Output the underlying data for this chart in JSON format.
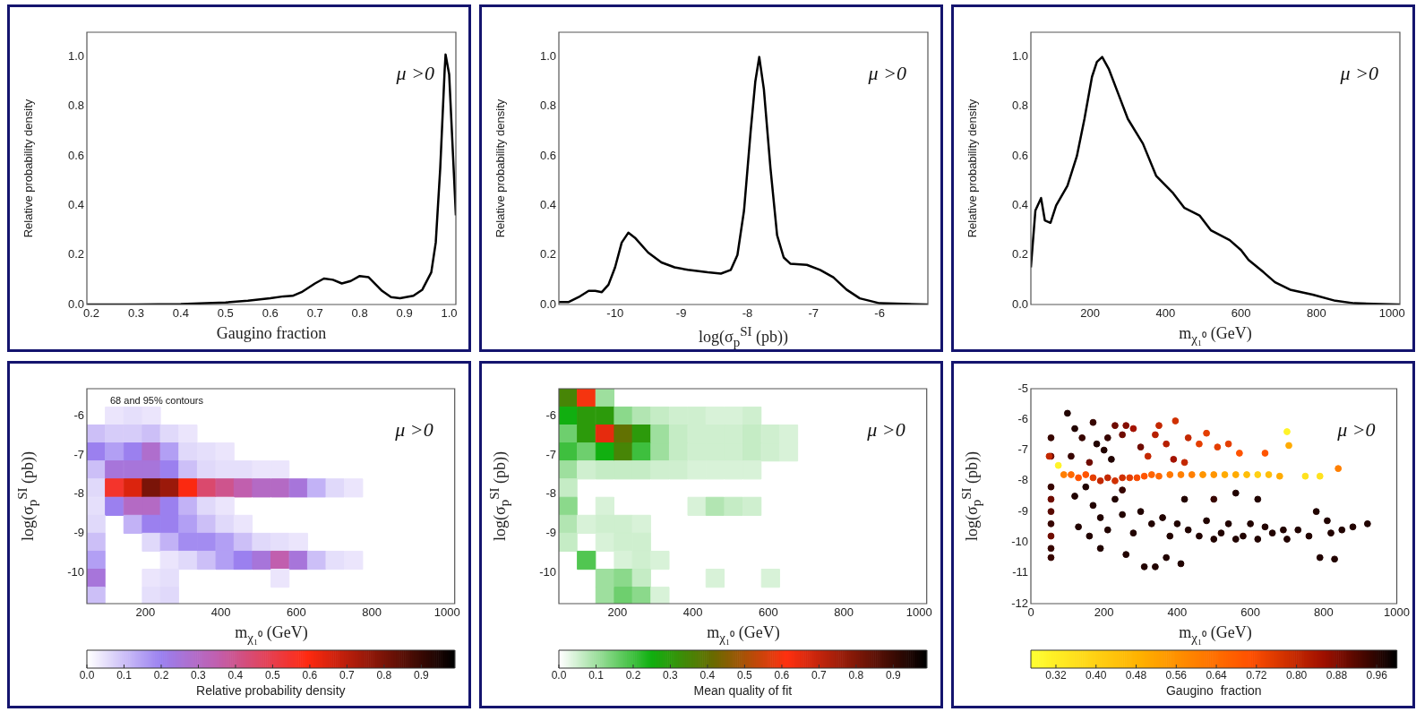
{
  "chart_data": [
    {
      "type": "line",
      "xlabel": "Gaugino  fraction",
      "ylabel": "Relative probability density",
      "annotations": [
        "μ >0"
      ],
      "xlim": [
        0.19,
        1.015
      ],
      "ylim": [
        0,
        1.1
      ],
      "xticks": [
        {
          "value": 0.2,
          "label": "0.2"
        },
        {
          "value": 0.3,
          "label": "0.3"
        },
        {
          "value": 0.4,
          "label": "0.4"
        },
        {
          "value": 0.5,
          "label": "0.5"
        },
        {
          "value": 0.6,
          "label": "0.6"
        },
        {
          "value": 0.7,
          "label": "0.7"
        },
        {
          "value": 0.8,
          "label": "0.8"
        },
        {
          "value": 0.9,
          "label": "0.9"
        },
        {
          "value": 1,
          "label": "1.0"
        }
      ],
      "yticks": [
        {
          "value": 0,
          "label": "0.0"
        },
        {
          "value": 0.2,
          "label": "0.2"
        },
        {
          "value": 0.4,
          "label": "0.4"
        },
        {
          "value": 0.6,
          "label": "0.6"
        },
        {
          "value": 0.8,
          "label": "0.8"
        },
        {
          "value": 1,
          "label": "1.0"
        }
      ],
      "series": [
        {
          "color": "#000000",
          "x": [
            0.19,
            0.3,
            0.4,
            0.5,
            0.55,
            0.6,
            0.63,
            0.65,
            0.67,
            0.7,
            0.72,
            0.74,
            0.76,
            0.78,
            0.8,
            0.82,
            0.85,
            0.87,
            0.89,
            0.92,
            0.94,
            0.96,
            0.97,
            0.98,
            0.99,
            0.992,
            1.0,
            1.015
          ],
          "values": [
            0,
            0,
            0.002,
            0.008,
            0.015,
            0.025,
            0.033,
            0.035,
            0.05,
            0.085,
            0.105,
            0.1,
            0.085,
            0.095,
            0.115,
            0.11,
            0.055,
            0.03,
            0.025,
            0.035,
            0.06,
            0.13,
            0.25,
            0.55,
            0.95,
            1.01,
            0.93,
            0.36
          ]
        }
      ]
    },
    {
      "type": "line",
      "xlabel": "log(σ$_{p}$$^{SI}$ (pb))",
      "ylabel": "Relative probability density",
      "annotations": [
        "μ >0"
      ],
      "xlim": [
        -10.85,
        -5.27
      ],
      "ylim": [
        0,
        1.1
      ],
      "xticks": [
        -10,
        -9,
        -8,
        -7,
        -6
      ],
      "yticks": [
        {
          "value": 0,
          "label": "0.0"
        },
        {
          "value": 0.2,
          "label": "0.2"
        },
        {
          "value": 0.4,
          "label": "0.4"
        },
        {
          "value": 0.6,
          "label": "0.6"
        },
        {
          "value": 0.8,
          "label": "0.8"
        },
        {
          "value": 1,
          "label": "1.0"
        }
      ],
      "series": [
        {
          "color": "#000000",
          "x": [
            -10.85,
            -10.7,
            -10.55,
            -10.4,
            -10.3,
            -10.2,
            -10.1,
            -10.0,
            -9.9,
            -9.8,
            -9.7,
            -9.5,
            -9.3,
            -9.1,
            -8.9,
            -8.6,
            -8.4,
            -8.25,
            -8.15,
            -8.05,
            -7.95,
            -7.88,
            -7.82,
            -7.75,
            -7.65,
            -7.55,
            -7.45,
            -7.35,
            -7.1,
            -6.9,
            -6.7,
            -6.5,
            -6.3,
            -6.0,
            -5.27
          ],
          "values": [
            0.01,
            0.01,
            0.03,
            0.055,
            0.055,
            0.05,
            0.08,
            0.15,
            0.25,
            0.29,
            0.27,
            0.21,
            0.17,
            0.15,
            0.14,
            0.13,
            0.125,
            0.14,
            0.2,
            0.38,
            0.7,
            0.9,
            1.0,
            0.87,
            0.55,
            0.28,
            0.19,
            0.165,
            0.16,
            0.14,
            0.11,
            0.06,
            0.025,
            0.005,
            0
          ]
        }
      ]
    },
    {
      "type": "line",
      "xlabel": "m$_{χ₁⁰}$ (GeV)",
      "ylabel": "Relative probability density",
      "annotations": [
        "μ >0"
      ],
      "xlim": [
        43,
        1021
      ],
      "ylim": [
        0,
        1.1
      ],
      "xticks": [
        200,
        400,
        600,
        800,
        1000
      ],
      "yticks": [
        {
          "value": 0,
          "label": "0.0"
        },
        {
          "value": 0.2,
          "label": "0.2"
        },
        {
          "value": 0.4,
          "label": "0.4"
        },
        {
          "value": 0.6,
          "label": "0.6"
        },
        {
          "value": 0.8,
          "label": "0.8"
        },
        {
          "value": 1,
          "label": "1.0"
        }
      ],
      "series": [
        {
          "color": "#000000",
          "x": [
            43,
            55,
            70,
            80,
            95,
            110,
            140,
            165,
            185,
            205,
            218,
            232,
            250,
            275,
            300,
            340,
            375,
            420,
            450,
            490,
            520,
            570,
            600,
            620,
            660,
            690,
            730,
            790,
            850,
            900,
            1021
          ],
          "values": [
            0.15,
            0.38,
            0.43,
            0.34,
            0.33,
            0.4,
            0.48,
            0.6,
            0.75,
            0.92,
            0.98,
            1.0,
            0.95,
            0.85,
            0.75,
            0.65,
            0.52,
            0.45,
            0.39,
            0.36,
            0.3,
            0.26,
            0.22,
            0.18,
            0.13,
            0.09,
            0.06,
            0.04,
            0.015,
            0.005,
            0
          ]
        }
      ]
    },
    {
      "type": "scatter",
      "xlabel": "m$_{χ₁⁰}$ (GeV)",
      "ylabel": "log(σ$_{p}$$^{SI}$ (pb))",
      "clabel": "Relative probability density",
      "annotations": [
        "μ >0",
        "68 and 95% contours"
      ],
      "marker": "square",
      "xlim": [
        45,
        1020
      ],
      "ylim": [
        -10.8,
        -5.3
      ],
      "xticks": [
        200,
        400,
        600,
        800,
        1000
      ],
      "yticks": [
        -10,
        -9,
        -8,
        -7,
        -6
      ],
      "clim": [
        0,
        0.99
      ],
      "cticks": [
        {
          "value": 0,
          "label": "0.0"
        },
        {
          "value": 0.1,
          "label": "0.1"
        },
        {
          "value": 0.2,
          "label": "0.2"
        },
        {
          "value": 0.3,
          "label": "0.3"
        },
        {
          "value": 0.4,
          "label": "0.4"
        },
        {
          "value": 0.5,
          "label": "0.5"
        },
        {
          "value": 0.6,
          "label": "0.6"
        },
        {
          "value": 0.7,
          "label": "0.7"
        },
        {
          "value": 0.8,
          "label": "0.8"
        },
        {
          "value": 0.9,
          "label": "0.9"
        }
      ],
      "x": [
        118,
        167,
        216,
        69,
        118,
        167,
        216,
        264,
        313,
        69,
        118,
        167,
        216,
        264,
        313,
        362,
        411,
        69,
        118,
        167,
        216,
        264,
        313,
        362,
        411,
        459,
        508,
        557,
        69,
        118,
        167,
        216,
        264,
        313,
        362,
        411,
        459,
        508,
        557,
        606,
        654,
        703,
        752,
        69,
        118,
        167,
        216,
        264,
        313,
        362,
        411,
        69,
        167,
        216,
        264,
        313,
        362,
        411,
        459,
        69,
        216,
        264,
        313,
        362,
        411,
        459,
        508,
        557,
        606,
        69,
        264,
        313,
        362,
        411,
        459,
        508,
        557,
        606,
        654,
        703,
        752,
        69,
        216,
        264,
        557,
        69,
        216,
        264
      ],
      "values": [
        -6.0,
        -6.0,
        -6.0,
        -6.46,
        -6.46,
        -6.46,
        -6.46,
        -6.46,
        -6.46,
        -6.92,
        -6.92,
        -6.92,
        -6.92,
        -6.92,
        -6.92,
        -6.92,
        -6.92,
        -7.38,
        -7.38,
        -7.38,
        -7.38,
        -7.38,
        -7.38,
        -7.38,
        -7.38,
        -7.38,
        -7.38,
        -7.38,
        -7.84,
        -7.84,
        -7.84,
        -7.84,
        -7.84,
        -7.84,
        -7.84,
        -7.84,
        -7.84,
        -7.84,
        -7.84,
        -7.84,
        -7.84,
        -7.84,
        -7.84,
        -8.31,
        -8.31,
        -8.31,
        -8.31,
        -8.31,
        -8.31,
        -8.31,
        -8.31,
        -8.77,
        -8.77,
        -8.77,
        -8.77,
        -8.77,
        -8.77,
        -8.77,
        -8.77,
        -9.23,
        -9.23,
        -9.23,
        -9.23,
        -9.23,
        -9.23,
        -9.23,
        -9.23,
        -9.23,
        -9.23,
        -9.69,
        -9.69,
        -9.69,
        -9.69,
        -9.69,
        -9.69,
        -9.69,
        -9.69,
        -9.69,
        -9.69,
        -9.69,
        -9.69,
        -10.15,
        -10.15,
        -10.15,
        -10.15,
        -10.61,
        -10.61,
        -10.61
      ],
      "cvalues": [
        0.04,
        0.05,
        0.04,
        0.1,
        0.08,
        0.08,
        0.1,
        0.06,
        0.04,
        0.2,
        0.15,
        0.2,
        0.28,
        0.15,
        0.06,
        0.05,
        0.04,
        0.1,
        0.25,
        0.25,
        0.25,
        0.2,
        0.1,
        0.06,
        0.05,
        0.05,
        0.04,
        0.04,
        0.06,
        0.55,
        0.65,
        0.8,
        0.75,
        0.6,
        0.45,
        0.4,
        0.35,
        0.3,
        0.3,
        0.25,
        0.12,
        0.06,
        0.04,
        0.05,
        0.2,
        0.3,
        0.3,
        0.2,
        0.12,
        0.06,
        0.04,
        0.06,
        0.12,
        0.2,
        0.2,
        0.15,
        0.1,
        0.06,
        0.04,
        0.1,
        0.06,
        0.12,
        0.18,
        0.18,
        0.15,
        0.1,
        0.06,
        0.05,
        0.04,
        0.15,
        0.04,
        0.06,
        0.1,
        0.15,
        0.2,
        0.25,
        0.35,
        0.25,
        0.1,
        0.05,
        0.04,
        0.25,
        0.04,
        0.05,
        0.04,
        0.1,
        0.05,
        0.06
      ]
    },
    {
      "type": "scatter",
      "xlabel": "m$_{χ₁⁰}$ (GeV)",
      "ylabel": "log(σ$_{p}$$^{SI}$ (pb))",
      "clabel": "Mean quality of fit",
      "annotations": [
        "μ >0"
      ],
      "marker": "square",
      "xlim": [
        45,
        1020
      ],
      "ylim": [
        -10.8,
        -5.3
      ],
      "xticks": [
        200,
        400,
        600,
        800,
        1000
      ],
      "yticks": [
        -10,
        -9,
        -8,
        -7,
        -6
      ],
      "clim": [
        0,
        0.99
      ],
      "cticks": [
        {
          "value": 0,
          "label": "0.0"
        },
        {
          "value": 0.1,
          "label": "0.1"
        },
        {
          "value": 0.2,
          "label": "0.2"
        },
        {
          "value": 0.3,
          "label": "0.3"
        },
        {
          "value": 0.4,
          "label": "0.4"
        },
        {
          "value": 0.5,
          "label": "0.5"
        },
        {
          "value": 0.6,
          "label": "0.6"
        },
        {
          "value": 0.7,
          "label": "0.7"
        },
        {
          "value": 0.8,
          "label": "0.8"
        },
        {
          "value": 0.9,
          "label": "0.9"
        }
      ],
      "x": [
        69,
        118,
        167,
        69,
        118,
        167,
        216,
        264,
        313,
        362,
        411,
        459,
        508,
        557,
        69,
        118,
        167,
        216,
        264,
        313,
        362,
        411,
        459,
        508,
        557,
        606,
        654,
        69,
        118,
        167,
        216,
        264,
        313,
        362,
        411,
        459,
        508,
        557,
        606,
        654,
        69,
        118,
        167,
        216,
        264,
        313,
        362,
        411,
        459,
        508,
        557,
        69,
        69,
        167,
        411,
        459,
        508,
        557,
        69,
        118,
        167,
        216,
        264,
        69,
        167,
        216,
        264,
        118,
        216,
        264,
        313,
        167,
        216,
        264,
        459,
        606,
        167,
        216,
        264,
        313
      ],
      "values": [
        -5.53,
        -5.53,
        -5.53,
        -6.0,
        -6.0,
        -6.0,
        -6.0,
        -6.0,
        -6.0,
        -6.0,
        -6.0,
        -6.0,
        -6.0,
        -6.0,
        -6.46,
        -6.46,
        -6.46,
        -6.46,
        -6.46,
        -6.46,
        -6.46,
        -6.46,
        -6.46,
        -6.46,
        -6.46,
        -6.46,
        -6.46,
        -6.92,
        -6.92,
        -6.92,
        -6.92,
        -6.92,
        -6.92,
        -6.92,
        -6.92,
        -6.92,
        -6.92,
        -6.92,
        -6.92,
        -6.92,
        -7.38,
        -7.38,
        -7.38,
        -7.38,
        -7.38,
        -7.38,
        -7.38,
        -7.38,
        -7.38,
        -7.38,
        -7.38,
        -7.84,
        -8.31,
        -8.31,
        -8.31,
        -8.31,
        -8.31,
        -8.31,
        -8.77,
        -8.77,
        -8.77,
        -8.77,
        -8.77,
        -9.23,
        -9.23,
        -9.23,
        -9.23,
        -9.69,
        -9.69,
        -9.69,
        -9.69,
        -10.15,
        -10.15,
        -10.15,
        -10.15,
        -10.15,
        -10.61,
        -10.61,
        -10.61,
        -10.61
      ],
      "cvalues": [
        0.35,
        0.6,
        0.1,
        0.25,
        0.3,
        0.3,
        0.12,
        0.08,
        0.06,
        0.05,
        0.05,
        0.04,
        0.04,
        0.05,
        0.15,
        0.3,
        0.65,
        0.4,
        0.3,
        0.1,
        0.06,
        0.05,
        0.05,
        0.05,
        0.06,
        0.05,
        0.04,
        0.2,
        0.15,
        0.25,
        0.35,
        0.2,
        0.1,
        0.06,
        0.05,
        0.05,
        0.05,
        0.06,
        0.05,
        0.04,
        0.1,
        0.05,
        0.06,
        0.06,
        0.06,
        0.05,
        0.05,
        0.04,
        0.04,
        0.04,
        0.04,
        0.06,
        0.12,
        0.04,
        0.04,
        0.08,
        0.06,
        0.05,
        0.08,
        0.04,
        0.05,
        0.05,
        0.04,
        0.06,
        0.04,
        0.05,
        0.05,
        0.18,
        0.04,
        0.05,
        0.04,
        0.1,
        0.12,
        0.06,
        0.04,
        0.04,
        0.1,
        0.15,
        0.12,
        0.04
      ]
    },
    {
      "type": "scatter",
      "xlabel": "m$_{χ₁⁰}$ (GeV)",
      "ylabel": "log(σ$_{p}$$^{SI}$ (pb))",
      "clabel": "Gaugino  fraction",
      "annotations": [
        "μ >0"
      ],
      "marker": "circle",
      "xlim": [
        0,
        1000
      ],
      "ylim": [
        -12,
        -5
      ],
      "xticks": [
        0,
        200,
        400,
        600,
        800,
        1000
      ],
      "yticks": [
        -12,
        -11,
        -10,
        -9,
        -8,
        -7,
        -6,
        -5
      ],
      "clim": [
        0.27,
        1.0
      ],
      "cticks": [
        0.32,
        {
          "value": 0.4,
          "label": "0.40"
        },
        0.48,
        0.56,
        0.64,
        0.72,
        {
          "value": 0.8,
          "label": "0.80"
        },
        0.88,
        0.96
      ],
      "x": [
        55,
        55,
        55,
        55,
        55,
        55,
        55,
        55,
        55,
        50,
        75,
        90,
        110,
        130,
        150,
        170,
        190,
        210,
        230,
        250,
        270,
        290,
        310,
        330,
        350,
        380,
        410,
        440,
        470,
        500,
        530,
        560,
        590,
        620,
        650,
        680,
        750,
        790,
        840,
        700,
        705,
        100,
        120,
        140,
        170,
        180,
        200,
        210,
        220,
        230,
        250,
        260,
        280,
        300,
        320,
        340,
        350,
        370,
        390,
        395,
        420,
        430,
        460,
        480,
        510,
        540,
        570,
        640,
        110,
        160,
        120,
        150,
        170,
        190,
        130,
        160,
        190,
        210,
        230,
        250,
        260,
        280,
        300,
        310,
        330,
        340,
        360,
        370,
        380,
        400,
        410,
        420,
        430,
        460,
        480,
        500,
        520,
        540,
        560,
        580,
        600,
        620,
        640,
        660,
        690,
        700,
        730,
        760,
        780,
        790,
        810,
        820,
        830,
        850,
        880,
        920,
        560,
        620,
        500,
        250
      ],
      "values": [
        -6.6,
        -7.2,
        -8.2,
        -8.6,
        -9.0,
        -9.4,
        -9.8,
        -10.2,
        -10.5,
        -7.2,
        -7.5,
        -7.8,
        -7.8,
        -7.9,
        -7.8,
        -7.9,
        -8.0,
        -7.9,
        -8.0,
        -7.9,
        -7.9,
        -7.9,
        -7.85,
        -7.8,
        -7.85,
        -7.8,
        -7.8,
        -7.8,
        -7.8,
        -7.8,
        -7.8,
        -7.8,
        -7.8,
        -7.8,
        -7.8,
        -7.85,
        -7.85,
        -7.85,
        -7.6,
        -6.4,
        -6.85,
        -5.8,
        -6.3,
        -6.6,
        -6.1,
        -6.8,
        -7.0,
        -6.6,
        -7.3,
        -6.2,
        -6.5,
        -6.2,
        -6.3,
        -6.9,
        -7.2,
        -6.5,
        -6.2,
        -6.8,
        -7.3,
        -6.05,
        -7.4,
        -6.6,
        -6.8,
        -6.45,
        -6.9,
        -6.8,
        -7.1,
        -7.1,
        -7.2,
        -7.4,
        -8.5,
        -8.2,
        -8.8,
        -9.2,
        -9.5,
        -9.8,
        -10.2,
        -9.6,
        -8.6,
        -9.1,
        -10.4,
        -9.7,
        -9.0,
        -10.8,
        -9.4,
        -10.8,
        -9.2,
        -10.5,
        -9.8,
        -9.4,
        -10.7,
        -8.6,
        -9.6,
        -9.8,
        -9.3,
        -9.9,
        -9.7,
        -9.4,
        -9.9,
        -9.8,
        -9.4,
        -9.9,
        -9.5,
        -9.7,
        -9.6,
        -9.9,
        -9.6,
        -9.8,
        -9.0,
        -10.5,
        -9.3,
        -9.7,
        -10.55,
        -9.6,
        -9.5,
        -9.4,
        -8.4,
        -8.6,
        -8.6,
        -8.3
      ],
      "cvalues": [
        0.95,
        0.9,
        0.95,
        0.9,
        0.92,
        0.95,
        0.9,
        0.95,
        0.95,
        0.8,
        0.3,
        0.6,
        0.65,
        0.7,
        0.7,
        0.75,
        0.8,
        0.8,
        0.78,
        0.78,
        0.75,
        0.72,
        0.7,
        0.66,
        0.65,
        0.62,
        0.6,
        0.6,
        0.55,
        0.55,
        0.5,
        0.5,
        0.45,
        0.4,
        0.45,
        0.5,
        0.35,
        0.35,
        0.6,
        0.3,
        0.5,
        0.97,
        0.97,
        0.95,
        0.95,
        0.97,
        0.97,
        0.95,
        0.97,
        0.9,
        0.9,
        0.88,
        0.85,
        0.9,
        0.8,
        0.82,
        0.8,
        0.82,
        0.85,
        0.78,
        0.8,
        0.8,
        0.75,
        0.75,
        0.75,
        0.75,
        0.7,
        0.7,
        0.95,
        0.9,
        0.97,
        0.97,
        0.97,
        0.97,
        0.97,
        0.97,
        0.97,
        0.97,
        0.97,
        0.97,
        0.97,
        0.97,
        0.97,
        0.97,
        0.97,
        0.97,
        0.97,
        0.97,
        0.97,
        0.97,
        0.97,
        0.97,
        0.97,
        0.97,
        0.97,
        0.97,
        0.97,
        0.97,
        0.97,
        0.97,
        0.97,
        0.97,
        0.97,
        0.97,
        0.97,
        0.97,
        0.97,
        0.97,
        0.97,
        0.97,
        0.97,
        0.97,
        0.97,
        0.97,
        0.97,
        0.97,
        0.97,
        0.97,
        0.95,
        0.95
      ]
    }
  ]
}
